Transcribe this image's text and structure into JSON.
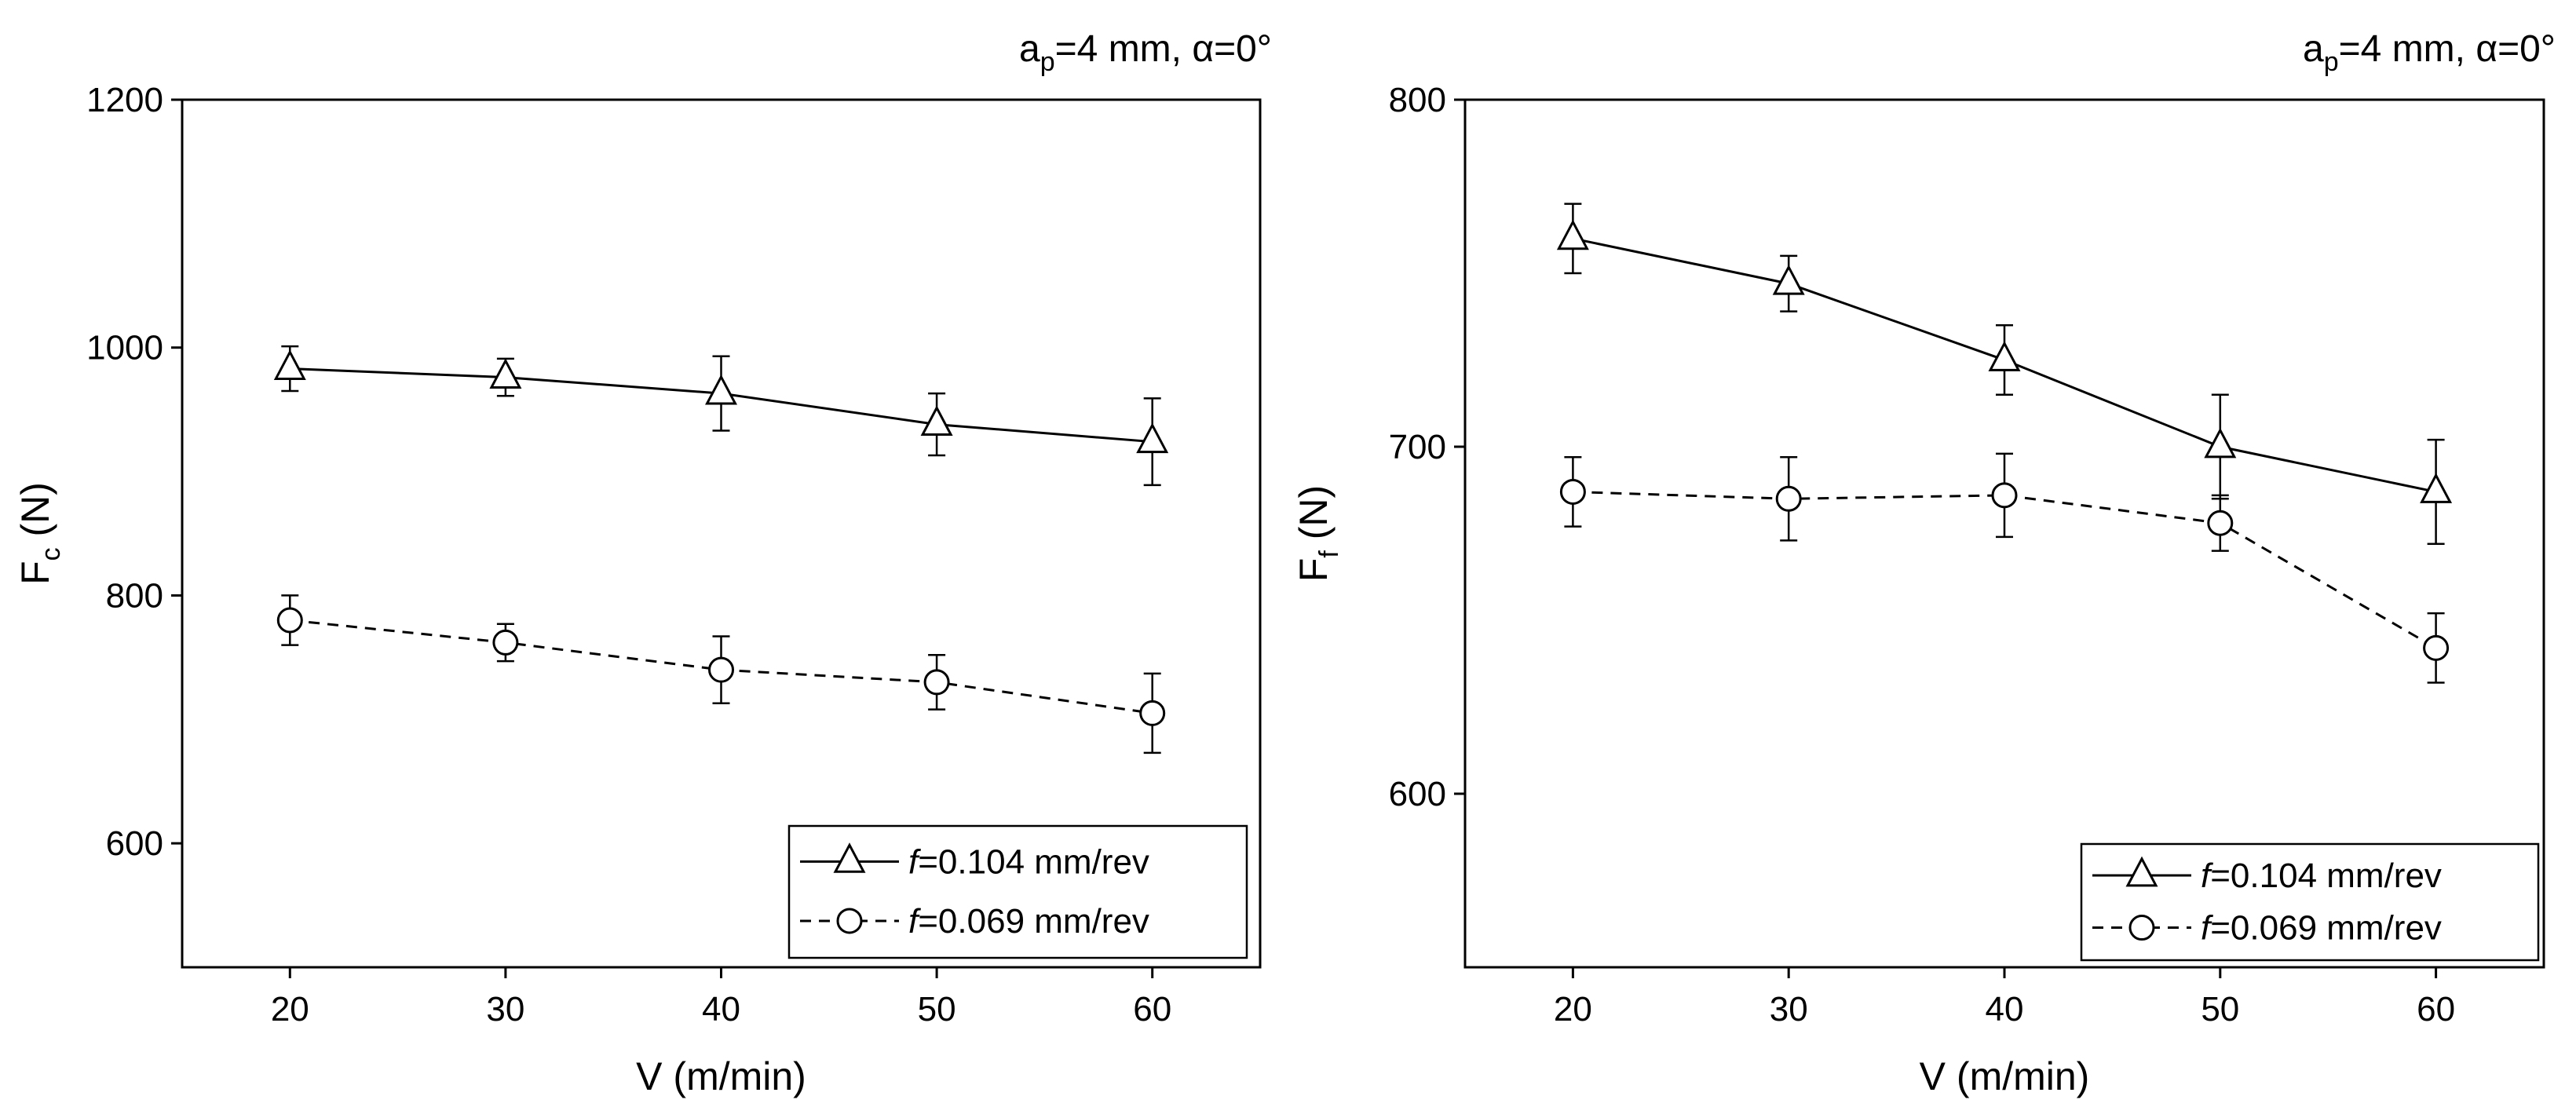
{
  "chart_data": [
    {
      "type": "line",
      "annotation": {
        "prefix": "a",
        "prefix_sub": "p",
        "text": "=4 mm, ",
        "greek": "α",
        "value": "=0°"
      },
      "xlabel": "V (m/min)",
      "ylabel": {
        "main": "F",
        "sub": "c",
        "unit": " (N)"
      },
      "x": [
        20,
        30,
        40,
        50,
        60
      ],
      "xlim": [
        15,
        65
      ],
      "ylim": [
        500,
        1200
      ],
      "x_ticks": [
        20,
        30,
        40,
        50,
        60
      ],
      "y_ticks": [
        600,
        800,
        1000,
        1200
      ],
      "legend_position": "bottom-right",
      "series": [
        {
          "name": "f=0.104 mm/rev",
          "italic": "f",
          "rest": "=0.104 mm/rev",
          "marker": "triangle",
          "line": "solid",
          "values": [
            983,
            976,
            963,
            938,
            924
          ],
          "errors": [
            18,
            15,
            30,
            25,
            35
          ]
        },
        {
          "name": "f=0.069 mm/rev",
          "italic": "f",
          "rest": "=0.069 mm/rev",
          "marker": "circle",
          "line": "dashed",
          "values": [
            780,
            762,
            740,
            730,
            705
          ],
          "errors": [
            20,
            15,
            27,
            22,
            32
          ]
        }
      ]
    },
    {
      "type": "line",
      "annotation": {
        "prefix": "a",
        "prefix_sub": "p",
        "text": "=4 mm, ",
        "greek": "α",
        "value": "=0°"
      },
      "xlabel": "V (m/min)",
      "ylabel": {
        "main": "F",
        "sub": "f",
        "unit": " (N)"
      },
      "x": [
        20,
        30,
        40,
        50,
        60
      ],
      "xlim": [
        15,
        65
      ],
      "ylim": [
        550,
        800
      ],
      "x_ticks": [
        20,
        30,
        40,
        50,
        60
      ],
      "y_ticks": [
        600,
        700,
        800
      ],
      "legend_position": "bottom-right",
      "series": [
        {
          "name": "f=0.104 mm/rev",
          "italic": "f",
          "rest": "=0.104 mm/rev",
          "marker": "triangle",
          "line": "solid",
          "values": [
            760,
            747,
            725,
            700,
            687
          ],
          "errors": [
            10,
            8,
            10,
            15,
            15
          ]
        },
        {
          "name": "f=0.069 mm/rev",
          "italic": "f",
          "rest": "=0.069 mm/rev",
          "marker": "circle",
          "line": "dashed",
          "values": [
            687,
            685,
            686,
            678,
            642
          ],
          "errors": [
            10,
            12,
            12,
            8,
            10
          ]
        }
      ]
    }
  ]
}
